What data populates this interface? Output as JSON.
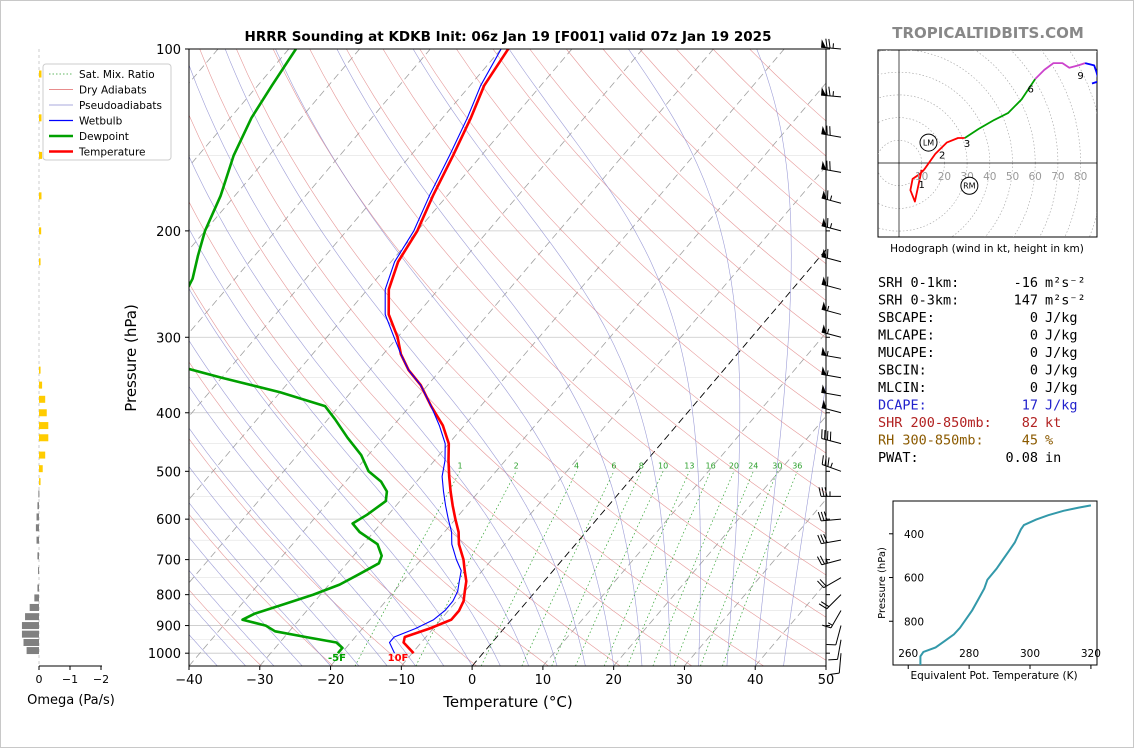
{
  "chart_data": [
    {
      "type": "line",
      "title": "HRRR Sounding at KDKB Init: 06z Jan 19 [F001] valid 07z Jan 19 2025",
      "xlabel": "Temperature (°C)",
      "ylabel": "Pressure (hPa)",
      "xlim": [
        -40,
        50
      ],
      "ylim": [
        1050,
        100
      ],
      "y_scale": "log",
      "x_ticks": [
        -40,
        -30,
        -20,
        -10,
        0,
        10,
        20,
        30,
        40,
        50
      ],
      "x_tick_labels": [
        "−40",
        "−30",
        "−20",
        "−10",
        "0",
        "10",
        "20",
        "30",
        "40",
        "50"
      ],
      "y_ticks": [
        100,
        200,
        300,
        400,
        500,
        600,
        700,
        800,
        900,
        1000
      ],
      "y_tick_labels": [
        "100",
        "200",
        "300",
        "400",
        "500",
        "600",
        "700",
        "800",
        "900",
        "1000"
      ],
      "legend": {
        "placement": "top-left",
        "entries": [
          {
            "label": "Sat. Mix. Ratio",
            "color": "#2ca02c",
            "style": "dotted"
          },
          {
            "label": "Dry Adiabats",
            "color": "#e06666",
            "style": "thin"
          },
          {
            "label": "Pseudoadiabats",
            "color": "#8c8cd0",
            "style": "thin"
          },
          {
            "label": "Wetbulb",
            "color": "#0000ff",
            "style": "solid"
          },
          {
            "label": "Dewpoint",
            "color": "#00a000",
            "style": "thick"
          },
          {
            "label": "Temperature",
            "color": "#ff0000",
            "style": "thick"
          }
        ]
      },
      "mixing_ratio_labels": [
        "1",
        "2",
        "4",
        "6",
        "8",
        "10",
        "13",
        "16",
        "20",
        "24",
        "30",
        "36"
      ],
      "surface_labels": {
        "dewpoint": "-5F",
        "temperature": "10F"
      },
      "series": [
        {
          "name": "Temperature",
          "color": "#ff0000",
          "points": [
            [
              -9.8,
              1000
            ],
            [
              -12.5,
              960
            ],
            [
              -13.0,
              940
            ],
            [
              -10.5,
              910
            ],
            [
              -8.5,
              880
            ],
            [
              -8.5,
              850
            ],
            [
              -9.0,
              820
            ],
            [
              -10.0,
              790
            ],
            [
              -11.0,
              760
            ],
            [
              -12.5,
              730
            ],
            [
              -14.0,
              700
            ],
            [
              -16.5,
              660
            ],
            [
              -18.0,
              630
            ],
            [
              -20.0,
              600
            ],
            [
              -22.0,
              570
            ],
            [
              -24.0,
              540
            ],
            [
              -26.0,
              510
            ],
            [
              -28.0,
              480
            ],
            [
              -30.0,
              450
            ],
            [
              -33.0,
              420
            ],
            [
              -37.0,
              390
            ],
            [
              -41.0,
              360
            ],
            [
              -44.5,
              340
            ],
            [
              -47.5,
              320
            ],
            [
              -50.0,
              300
            ],
            [
              -54.0,
              275
            ],
            [
              -57.0,
              250
            ],
            [
              -59.0,
              225
            ],
            [
              -60.0,
              200
            ],
            [
              -62.0,
              175
            ],
            [
              -64.0,
              150
            ],
            [
              -66.0,
              130
            ],
            [
              -68.0,
              115
            ],
            [
              -69.0,
              100
            ]
          ]
        },
        {
          "name": "Wetbulb",
          "color": "#0000ff",
          "points": [
            [
              -12.5,
              1000
            ],
            [
              -14.5,
              960
            ],
            [
              -14.5,
              940
            ],
            [
              -12.5,
              910
            ],
            [
              -11.0,
              880
            ],
            [
              -10.5,
              850
            ],
            [
              -10.5,
              820
            ],
            [
              -11.0,
              790
            ],
            [
              -12.0,
              760
            ],
            [
              -13.0,
              730
            ],
            [
              -15.0,
              700
            ],
            [
              -17.5,
              660
            ],
            [
              -19.0,
              630
            ],
            [
              -21.0,
              600
            ],
            [
              -23.0,
              570
            ],
            [
              -25.0,
              540
            ],
            [
              -27.0,
              510
            ],
            [
              -28.5,
              480
            ],
            [
              -30.5,
              450
            ],
            [
              -33.5,
              420
            ],
            [
              -37.0,
              390
            ],
            [
              -41.0,
              360
            ],
            [
              -44.5,
              340
            ],
            [
              -47.5,
              320
            ],
            [
              -50.5,
              300
            ],
            [
              -54.5,
              275
            ],
            [
              -57.5,
              250
            ],
            [
              -59.5,
              225
            ],
            [
              -60.5,
              200
            ],
            [
              -62.5,
              175
            ],
            [
              -64.5,
              150
            ],
            [
              -66.5,
              130
            ],
            [
              -68.5,
              115
            ],
            [
              -70.0,
              100
            ]
          ]
        },
        {
          "name": "Dewpoint",
          "color": "#00a000",
          "points": [
            [
              -20.5,
              1000
            ],
            [
              -20.5,
              980
            ],
            [
              -22.0,
              960
            ],
            [
              -27.0,
              940
            ],
            [
              -32.0,
              920
            ],
            [
              -34.0,
              900
            ],
            [
              -38.0,
              880
            ],
            [
              -37.0,
              860
            ],
            [
              -34.0,
              830
            ],
            [
              -31.0,
              800
            ],
            [
              -28.5,
              770
            ],
            [
              -27.0,
              740
            ],
            [
              -25.5,
              710
            ],
            [
              -26.0,
              690
            ],
            [
              -28.0,
              660
            ],
            [
              -32.0,
              630
            ],
            [
              -34.0,
              610
            ],
            [
              -33.0,
              590
            ],
            [
              -32.0,
              560
            ],
            [
              -33.0,
              540
            ],
            [
              -35.0,
              520
            ],
            [
              -38.0,
              500
            ],
            [
              -41.0,
              470
            ],
            [
              -45.0,
              440
            ],
            [
              -49.0,
              410
            ],
            [
              -52.0,
              390
            ],
            [
              -60.0,
              370
            ],
            [
              -70.0,
              350
            ],
            [
              -80.0,
              330
            ],
            [
              -82.0,
              310
            ],
            [
              -84.0,
              295
            ],
            [
              -84.0,
              280
            ],
            [
              -85.0,
              260
            ],
            [
              -86.0,
              240
            ],
            [
              -88.0,
              220
            ],
            [
              -90.0,
              200
            ],
            [
              -92.0,
              175
            ],
            [
              -95.0,
              150
            ],
            [
              -97.0,
              130
            ],
            [
              -98.0,
              115
            ],
            [
              -99.0,
              100
            ]
          ]
        }
      ]
    },
    {
      "type": "line",
      "title": "",
      "xlabel": "Hodograph (wind in kt, height in km)",
      "ylabel": "",
      "ring_labels": [
        "10",
        "20",
        "30",
        "40",
        "50",
        "60",
        "70",
        "80"
      ],
      "height_labels": [
        "1",
        "2",
        "3",
        "6",
        "9"
      ],
      "markers": [
        "LM",
        "RM"
      ],
      "series": [
        {
          "name": "0-1 km",
          "color": "#ff0000",
          "points": [
            [
              10,
              -3
            ],
            [
              7,
              -17
            ],
            [
              5,
              -12
            ],
            [
              6,
              -7
            ],
            [
              9,
              -5
            ],
            [
              11,
              -3
            ]
          ]
        },
        {
          "name": "1-3 km",
          "color": "#ff0000",
          "points": [
            [
              11,
              -3
            ],
            [
              16,
              4
            ],
            [
              21,
              9
            ],
            [
              26,
              11
            ],
            [
              29,
              11
            ]
          ]
        },
        {
          "name": "3-6 km",
          "color": "#00a000",
          "points": [
            [
              29,
              11
            ],
            [
              35,
              15
            ],
            [
              42,
              19
            ],
            [
              48,
              22
            ],
            [
              54,
              28
            ],
            [
              58,
              34
            ],
            [
              60,
              37
            ]
          ]
        },
        {
          "name": "6-9 km",
          "color": "#cc44cc",
          "points": [
            [
              60,
              37
            ],
            [
              64,
              41
            ],
            [
              68,
              44
            ],
            [
              72,
              44
            ],
            [
              75,
              42
            ],
            [
              79,
              43
            ],
            [
              82,
              44
            ]
          ]
        },
        {
          "name": "9+ km",
          "color": "#0000ff",
          "points": [
            [
              82,
              44
            ],
            [
              86,
              43
            ],
            [
              87,
              40
            ],
            [
              88,
              36
            ],
            [
              85,
              35
            ]
          ]
        }
      ]
    },
    {
      "type": "line",
      "title": "",
      "xlabel": "Equivalent Pot. Temperature (K)",
      "ylabel": "Pressure (hPa)",
      "xlim": [
        255,
        322
      ],
      "ylim": [
        1000,
        250
      ],
      "x_ticks": [
        "260",
        "280",
        "300",
        "320"
      ],
      "y_ticks": [
        "400",
        "600",
        "800"
      ],
      "series": [
        {
          "name": "Theta-e",
          "color": "#3399aa",
          "points": [
            [
              264,
              1000
            ],
            [
              264,
              960
            ],
            [
              265,
              940
            ],
            [
              269,
              920
            ],
            [
              272,
              890
            ],
            [
              275,
              860
            ],
            [
              277,
              830
            ],
            [
              279,
              790
            ],
            [
              281,
              750
            ],
            [
              283,
              700
            ],
            [
              285,
              650
            ],
            [
              286,
              610
            ],
            [
              289,
              560
            ],
            [
              291,
              520
            ],
            [
              293,
              480
            ],
            [
              295,
              440
            ],
            [
              296,
              410
            ],
            [
              297,
              380
            ],
            [
              298,
              360
            ],
            [
              302,
              335
            ],
            [
              306,
              315
            ],
            [
              311,
              295
            ],
            [
              316,
              280
            ],
            [
              320,
              270
            ]
          ]
        }
      ]
    },
    {
      "type": "bar",
      "title": "",
      "xlabel": "Omega (Pa/s)",
      "x_ticks": [
        "0",
        "−1",
        "−2"
      ],
      "rising_color": "#ffcc00",
      "sinking_color": "#808080",
      "levels": [
        110,
        130,
        150,
        175,
        200,
        225,
        340,
        360,
        380,
        400,
        420,
        440,
        470,
        495,
        520,
        545,
        570,
        595,
        620,
        650,
        690,
        730,
        780,
        810,
        840,
        870,
        900,
        930,
        960,
        990
      ],
      "values": [
        -0.08,
        -0.08,
        -0.1,
        -0.08,
        -0.07,
        -0.05,
        -0.05,
        -0.1,
        -0.2,
        -0.25,
        -0.3,
        -0.3,
        -0.2,
        -0.12,
        -0.05,
        0.02,
        0.05,
        0.08,
        0.1,
        0.08,
        0.05,
        0.03,
        0.05,
        0.15,
        0.3,
        0.45,
        0.55,
        0.55,
        0.5,
        0.4
      ]
    }
  ],
  "watermark": "TROPICALTIDBITS.COM",
  "indices": [
    {
      "label": "SRH 0-1km:",
      "value": "-16",
      "unit": "m²s⁻²",
      "color": "#000000"
    },
    {
      "label": "SRH 0-3km:",
      "value": "147",
      "unit": "m²s⁻²",
      "color": "#000000"
    },
    {
      "label": "SBCAPE:",
      "value": "0",
      "unit": "J/kg",
      "color": "#000000"
    },
    {
      "label": "MLCAPE:",
      "value": "0",
      "unit": "J/kg",
      "color": "#000000"
    },
    {
      "label": "MUCAPE:",
      "value": "0",
      "unit": "J/kg",
      "color": "#000000"
    },
    {
      "label": "SBCIN:",
      "value": "0",
      "unit": "J/kg",
      "color": "#000000"
    },
    {
      "label": "MLCIN:",
      "value": "0",
      "unit": "J/kg",
      "color": "#000000"
    },
    {
      "label": "DCAPE:",
      "value": "17",
      "unit": "J/kg",
      "color": "#2222cc"
    },
    {
      "label": "SHR 200-850mb:",
      "value": "82",
      "unit": "kt",
      "color": "#b22222"
    },
    {
      "label": "RH 300-850mb:",
      "value": "45",
      "unit": "%",
      "color": "#8b5a00"
    },
    {
      "label": "PWAT:",
      "value": "0.08",
      "unit": "in",
      "color": "#000000"
    }
  ],
  "wind_barbs": [
    {
      "p": 100,
      "spd": 75,
      "dir": 275
    },
    {
      "p": 120,
      "spd": 75,
      "dir": 275
    },
    {
      "p": 140,
      "spd": 70,
      "dir": 280
    },
    {
      "p": 160,
      "spd": 70,
      "dir": 280
    },
    {
      "p": 180,
      "spd": 65,
      "dir": 285
    },
    {
      "p": 200,
      "spd": 65,
      "dir": 285
    },
    {
      "p": 225,
      "spd": 60,
      "dir": 285
    },
    {
      "p": 250,
      "spd": 60,
      "dir": 285
    },
    {
      "p": 275,
      "spd": 55,
      "dir": 285
    },
    {
      "p": 300,
      "spd": 55,
      "dir": 285
    },
    {
      "p": 325,
      "spd": 55,
      "dir": 280
    },
    {
      "p": 350,
      "spd": 55,
      "dir": 280
    },
    {
      "p": 375,
      "spd": 50,
      "dir": 280
    },
    {
      "p": 400,
      "spd": 50,
      "dir": 285
    },
    {
      "p": 450,
      "spd": 40,
      "dir": 285
    },
    {
      "p": 500,
      "spd": 35,
      "dir": 290
    },
    {
      "p": 550,
      "spd": 35,
      "dir": 270
    },
    {
      "p": 600,
      "spd": 30,
      "dir": 265
    },
    {
      "p": 650,
      "spd": 30,
      "dir": 260
    },
    {
      "p": 700,
      "spd": 25,
      "dir": 255
    },
    {
      "p": 750,
      "spd": 20,
      "dir": 240
    },
    {
      "p": 800,
      "spd": 20,
      "dir": 225
    },
    {
      "p": 850,
      "spd": 15,
      "dir": 210
    },
    {
      "p": 900,
      "spd": 10,
      "dir": 195
    },
    {
      "p": 950,
      "spd": 10,
      "dir": 190
    },
    {
      "p": 1000,
      "spd": 10,
      "dir": 185
    }
  ]
}
